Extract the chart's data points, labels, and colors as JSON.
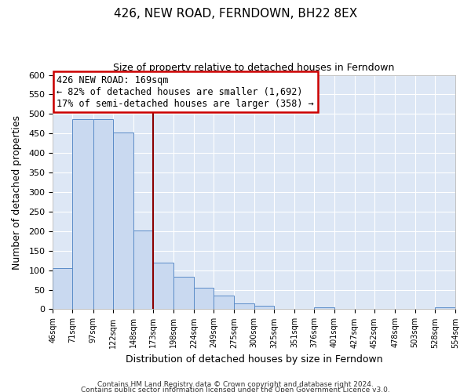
{
  "title": "426, NEW ROAD, FERNDOWN, BH22 8EX",
  "subtitle": "Size of property relative to detached houses in Ferndown",
  "xlabel": "Distribution of detached houses by size in Ferndown",
  "ylabel": "Number of detached properties",
  "bar_edges": [
    46,
    71,
    97,
    122,
    148,
    173,
    198,
    224,
    249,
    275,
    300,
    325,
    351,
    376,
    401,
    427,
    452,
    478,
    503,
    528,
    554
  ],
  "bar_heights": [
    105,
    487,
    487,
    453,
    202,
    120,
    83,
    56,
    36,
    14,
    8,
    0,
    0,
    5,
    0,
    0,
    0,
    0,
    0,
    5
  ],
  "bar_color": "#c9d9f0",
  "bar_edge_color": "#5b8cc8",
  "vline_x": 173,
  "vline_color": "#8b0000",
  "ylim": [
    0,
    600
  ],
  "yticks": [
    0,
    50,
    100,
    150,
    200,
    250,
    300,
    350,
    400,
    450,
    500,
    550,
    600
  ],
  "annotation_title": "426 NEW ROAD: 169sqm",
  "annotation_line1": "← 82% of detached houses are smaller (1,692)",
  "annotation_line2": "17% of semi-detached houses are larger (358) →",
  "annotation_box_color": "#ffffff",
  "annotation_box_edge": "#cc0000",
  "footer_line1": "Contains HM Land Registry data © Crown copyright and database right 2024.",
  "footer_line2": "Contains public sector information licensed under the Open Government Licence v3.0.",
  "background_color": "#ffffff",
  "plot_bg_color": "#dde7f5"
}
